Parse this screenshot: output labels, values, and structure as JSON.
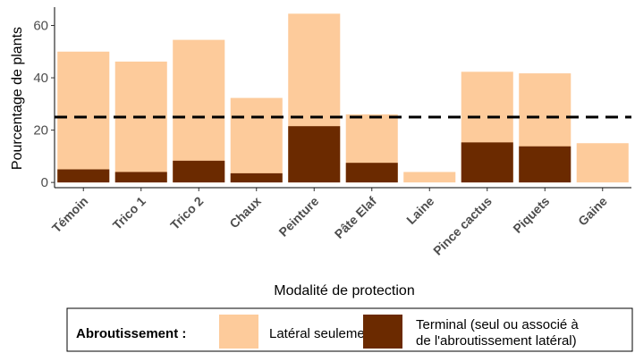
{
  "chart_data": {
    "type": "bar",
    "xlabel": "Modalité de protection",
    "ylabel": "Pourcentage de plants",
    "ylim": [
      -2,
      67
    ],
    "yticks": [
      0,
      20,
      40,
      60
    ],
    "categories": [
      "Témoin",
      "Trico 1",
      "Trico 2",
      "Chaux",
      "Peinture",
      "Pâte Elaf",
      "Laine",
      "Pince cactus",
      "Piquets",
      "Gaine"
    ],
    "series": [
      {
        "name": "Latéral seulement",
        "color": "#FDCB9B",
        "values": [
          50,
          46.2,
          54.5,
          32.3,
          64.5,
          26,
          4,
          42.3,
          41.7,
          15
        ]
      },
      {
        "name": "Terminal (seul ou associé à de l'abroutissement latéral)",
        "name_lines": [
          "Terminal (seul ou associé à",
          "de l'abroutissement latéral)"
        ],
        "color": "#6B2A00",
        "values": [
          5,
          4,
          8.3,
          3.5,
          21.5,
          7.5,
          0,
          15.3,
          13.8,
          0
        ]
      }
    ],
    "reference_line": {
      "y": 25,
      "style": "dashed",
      "color": "#000000"
    },
    "legend": {
      "title": "Abroutissement :",
      "position": "bottom"
    },
    "grid": false
  }
}
